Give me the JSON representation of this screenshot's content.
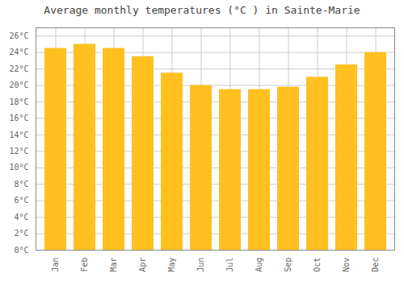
{
  "chart_data": {
    "type": "bar",
    "title": "Average monthly temperatures (°C ) in Sainte-Marie",
    "categories": [
      "Jan",
      "Feb",
      "Mar",
      "Apr",
      "May",
      "Jun",
      "Jul",
      "Aug",
      "Sep",
      "Oct",
      "Nov",
      "Dec"
    ],
    "values": [
      24.5,
      25.0,
      24.5,
      23.5,
      21.5,
      20.0,
      19.5,
      19.5,
      19.8,
      21.0,
      22.5,
      24.0
    ],
    "color": "#FFC020",
    "ylim": [
      0,
      27
    ],
    "yticks": [
      {
        "value": 0,
        "label": "0°C"
      },
      {
        "value": 2,
        "label": "2°C"
      },
      {
        "value": 4,
        "label": "4°C"
      },
      {
        "value": 6,
        "label": "6°C"
      },
      {
        "value": 8,
        "label": "8°C"
      },
      {
        "value": 10,
        "label": "10°C"
      },
      {
        "value": 12,
        "label": "12°C"
      },
      {
        "value": 14,
        "label": "14°C"
      },
      {
        "value": 16,
        "label": "16°C"
      },
      {
        "value": 18,
        "label": "18°C"
      },
      {
        "value": 20,
        "label": "20°C"
      },
      {
        "value": 22,
        "label": "22°C"
      },
      {
        "value": 24,
        "label": "24°C"
      },
      {
        "value": 26,
        "label": "26°C"
      }
    ],
    "grid": true
  }
}
